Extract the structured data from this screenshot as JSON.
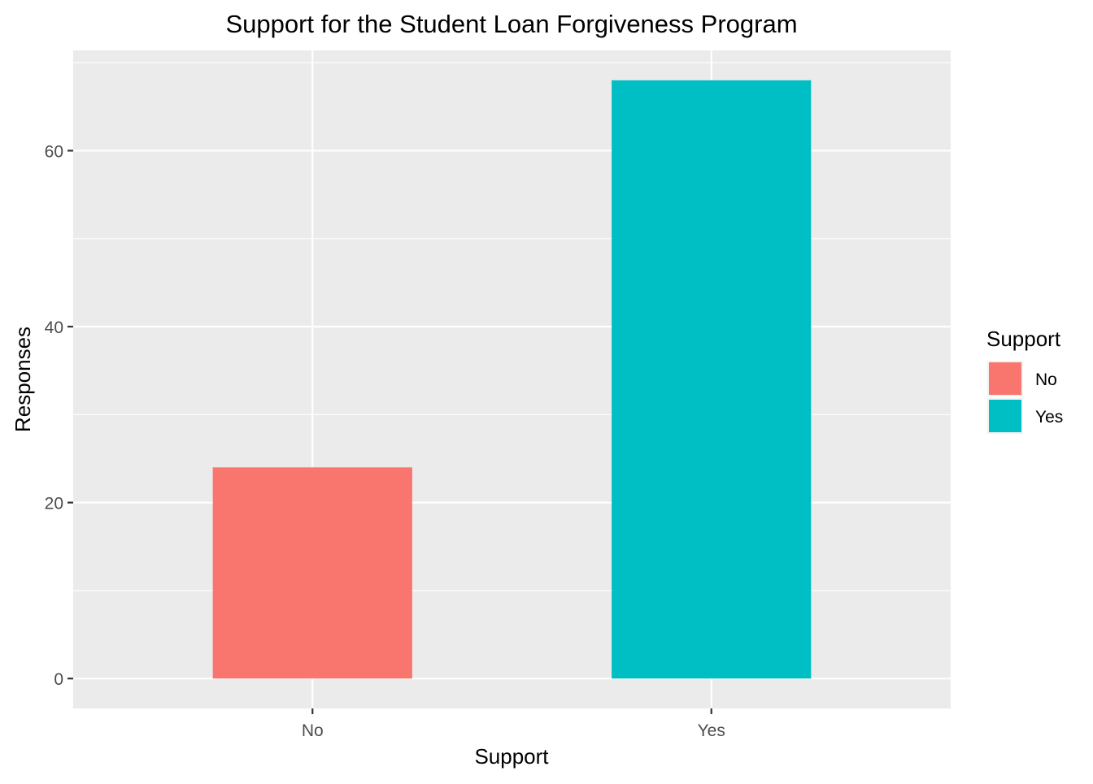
{
  "chart_data": {
    "type": "bar",
    "title": "Support for the Student Loan Forgiveness Program",
    "xlabel": "Support",
    "ylabel": "Responses",
    "categories": [
      "No",
      "Yes"
    ],
    "values": [
      24,
      68
    ],
    "colors": [
      "#F8766D",
      "#00BFC4"
    ],
    "ylim": [
      -3.4,
      71.4
    ],
    "yticks": [
      0,
      20,
      40,
      60
    ],
    "ytick_labels": [
      "0",
      "20",
      "40",
      "60"
    ],
    "grid": true,
    "legend": {
      "title": "Support",
      "position": "right",
      "items": [
        {
          "label": "No",
          "color": "#F8766D"
        },
        {
          "label": "Yes",
          "color": "#00BFC4"
        }
      ]
    },
    "panel_background": "#EBEBEB",
    "grid_color": "#FFFFFF"
  }
}
